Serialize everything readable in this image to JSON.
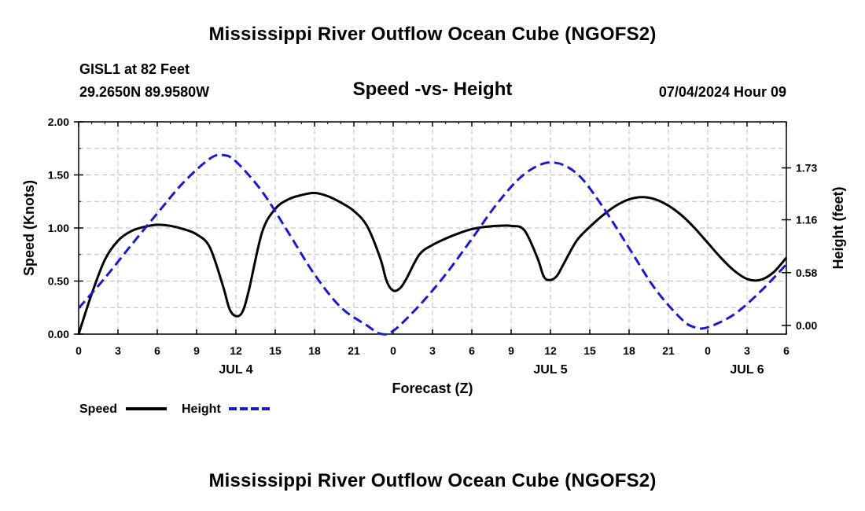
{
  "page": {
    "title": "Mississippi River Outflow Ocean Cube (NGOFS2)",
    "station": "GISL1 at 82 Feet",
    "location": "29.2650N  89.9580W",
    "datetime": "07/04/2024 Hour 09",
    "footer_title": "Mississippi River Outflow Ocean Cube (NGOFS2)"
  },
  "chart_data": {
    "type": "line",
    "title": "Speed -vs- Height",
    "xlabel": "Forecast (Z)",
    "ylabel": "Speed (Knots)",
    "y2label": "Height (feet)",
    "xlim": [
      0,
      54
    ],
    "ylim": [
      0,
      2.0
    ],
    "y2lim": [
      -0.095,
      2.235
    ],
    "x_ticks": [
      0,
      3,
      6,
      9,
      12,
      15,
      18,
      21,
      24,
      27,
      30,
      33,
      36,
      39,
      42,
      45,
      48,
      51,
      54
    ],
    "x_tick_labels": [
      "0",
      "3",
      "6",
      "9",
      "12",
      "15",
      "18",
      "21",
      "0",
      "3",
      "6",
      "9",
      "12",
      "15",
      "18",
      "21",
      "0",
      "3",
      "6"
    ],
    "date_labels": [
      {
        "x": 12,
        "label": "JUL 4"
      },
      {
        "x": 36,
        "label": "JUL 5"
      },
      {
        "x": 51,
        "label": "JUL 6"
      }
    ],
    "y_ticks": [
      0.0,
      0.5,
      1.0,
      1.5,
      2.0
    ],
    "y_tick_labels": [
      "0.00",
      "0.50",
      "1.00",
      "1.50",
      "2.00"
    ],
    "y2_ticks": [
      0.0,
      0.58,
      1.16,
      1.73
    ],
    "y2_tick_labels": [
      "0.00",
      "0.58",
      "1.16",
      "1.73"
    ],
    "grid": true,
    "legend_position": "bottom-left",
    "series": [
      {
        "name": "Speed",
        "axis": "left",
        "color": "#000000",
        "dash": "solid",
        "x": [
          0,
          1,
          2,
          3,
          4,
          5,
          6,
          7,
          8,
          9,
          10,
          11,
          11.5,
          12,
          12.5,
          13,
          14,
          15,
          16,
          17,
          18,
          19,
          20,
          21,
          22,
          23,
          23.5,
          24,
          24.5,
          25,
          26,
          27,
          28,
          29,
          30,
          31,
          32,
          33,
          34,
          35,
          35.5,
          36,
          36.5,
          37,
          38,
          39,
          40,
          41,
          42,
          43,
          44,
          45,
          46,
          47,
          48,
          49,
          50,
          51,
          52,
          53,
          54
        ],
        "y": [
          0.0,
          0.38,
          0.7,
          0.88,
          0.97,
          1.01,
          1.03,
          1.02,
          0.99,
          0.94,
          0.82,
          0.46,
          0.24,
          0.17,
          0.21,
          0.42,
          0.96,
          1.18,
          1.27,
          1.31,
          1.33,
          1.3,
          1.24,
          1.16,
          1.02,
          0.72,
          0.5,
          0.41,
          0.43,
          0.52,
          0.75,
          0.84,
          0.9,
          0.95,
          0.99,
          1.01,
          1.02,
          1.02,
          0.98,
          0.72,
          0.54,
          0.51,
          0.55,
          0.66,
          0.88,
          1.01,
          1.12,
          1.21,
          1.27,
          1.29,
          1.27,
          1.21,
          1.12,
          1.0,
          0.86,
          0.72,
          0.6,
          0.52,
          0.51,
          0.58,
          0.72
        ]
      },
      {
        "name": "Height",
        "axis": "right",
        "color": "#1a1acd",
        "dash": "dashed",
        "x": [
          0,
          2,
          4,
          6,
          8,
          10,
          11,
          12,
          14,
          16,
          18,
          20,
          22,
          23,
          24,
          26,
          28,
          30,
          32,
          34,
          36,
          38,
          40,
          42,
          44,
          46,
          47,
          48,
          50,
          52,
          54
        ],
        "y": [
          0.19,
          0.52,
          0.88,
          1.23,
          1.57,
          1.83,
          1.87,
          1.8,
          1.47,
          1.02,
          0.56,
          0.2,
          0.0,
          -0.09,
          -0.06,
          0.22,
          0.56,
          0.95,
          1.35,
          1.66,
          1.79,
          1.67,
          1.3,
          0.85,
          0.4,
          0.07,
          -0.02,
          -0.02,
          0.12,
          0.37,
          0.67
        ]
      }
    ]
  }
}
